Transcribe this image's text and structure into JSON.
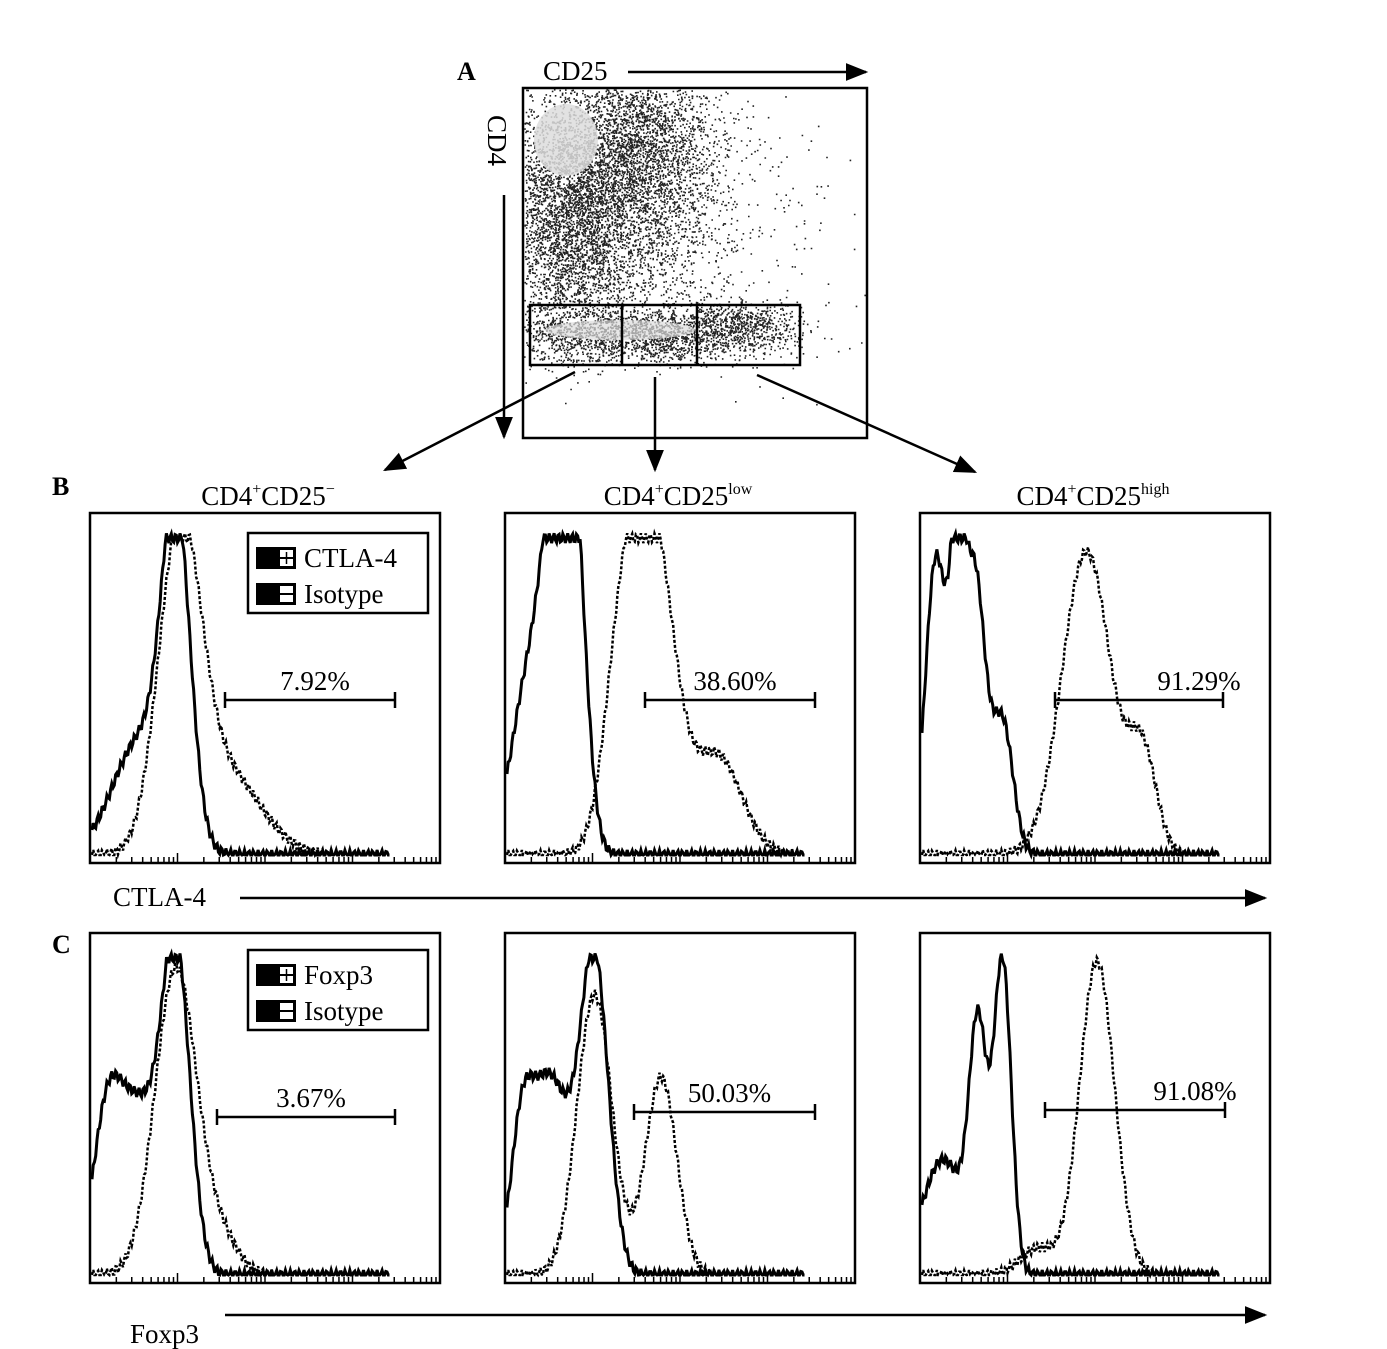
{
  "panel_a": {
    "label": "A",
    "x_axis": "CD25",
    "y_axis": "CD4"
  },
  "populations": [
    {
      "name": "CD4",
      "sup": "+",
      "marker": "CD25",
      "marker_sup": "−"
    },
    {
      "name": "CD4",
      "sup": "+",
      "marker": "CD25",
      "marker_sup": "low"
    },
    {
      "name": "CD4",
      "sup": "+",
      "marker": "CD25",
      "marker_sup": "high"
    }
  ],
  "row_b": {
    "label": "B",
    "axis_label": "CTLA-4",
    "legend": [
      "CTLA-4",
      "Isotype"
    ],
    "percents": [
      "7.92%",
      "38.60%",
      "91.29%"
    ]
  },
  "row_c": {
    "label": "C",
    "axis_label": "Foxp3",
    "legend": [
      "Foxp3",
      "Isotype"
    ],
    "percents": [
      "3.67%",
      "50.03%",
      "91.08%"
    ]
  }
}
